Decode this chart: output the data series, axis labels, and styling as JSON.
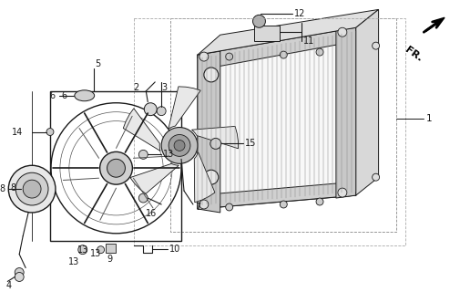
{
  "bg_color": "#ffffff",
  "lc": "#1a1a1a",
  "figsize": [
    5.06,
    3.2
  ],
  "dpi": 100,
  "xlim": [
    0,
    506
  ],
  "ylim": [
    0,
    320
  ]
}
